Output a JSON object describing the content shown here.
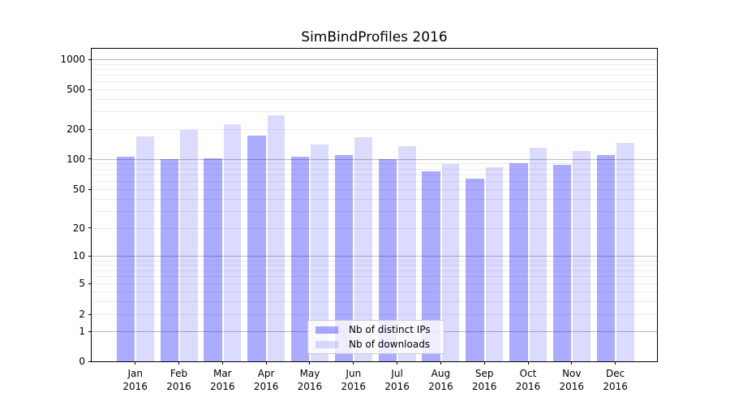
{
  "chart_data": {
    "type": "bar",
    "title": "SimBindProfiles 2016",
    "categories": [
      "Jan 2016",
      "Feb 2016",
      "Mar 2016",
      "Apr 2016",
      "May 2016",
      "Jun 2016",
      "Jul 2016",
      "Aug 2016",
      "Sep 2016",
      "Oct 2016",
      "Nov 2016",
      "Dec 2016"
    ],
    "series": [
      {
        "name": "Nb of distinct IPs",
        "color": "rgba(0,0,255,0.33)",
        "values": [
          105,
          100,
          101,
          172,
          105,
          110,
          100,
          76,
          64,
          91,
          87,
          110
        ]
      },
      {
        "name": "Nb of downloads",
        "color": "rgba(0,0,255,0.14)",
        "values": [
          170,
          195,
          225,
          275,
          140,
          167,
          135,
          89,
          82,
          130,
          120,
          146
        ]
      }
    ],
    "xlabel": "",
    "ylabel": "",
    "yscale": "symlog",
    "ylim": [
      0,
      1370
    ],
    "y_ticks": [
      0,
      1,
      2,
      5,
      10,
      20,
      50,
      100,
      200,
      500,
      1000
    ],
    "y_major_gridlines": [
      1,
      10,
      100,
      1000
    ],
    "y_minor_gridlines": [
      3,
      4,
      6,
      7,
      8,
      9,
      30,
      40,
      60,
      70,
      80,
      90,
      300,
      400,
      600,
      700,
      800,
      900
    ],
    "grid": true,
    "legend_position": "lower center",
    "colors": {
      "major_grid": "#bbbbbb",
      "minor_grid": "#ebebeb",
      "axis": "#000000",
      "legend_border": "#cccccc"
    }
  }
}
